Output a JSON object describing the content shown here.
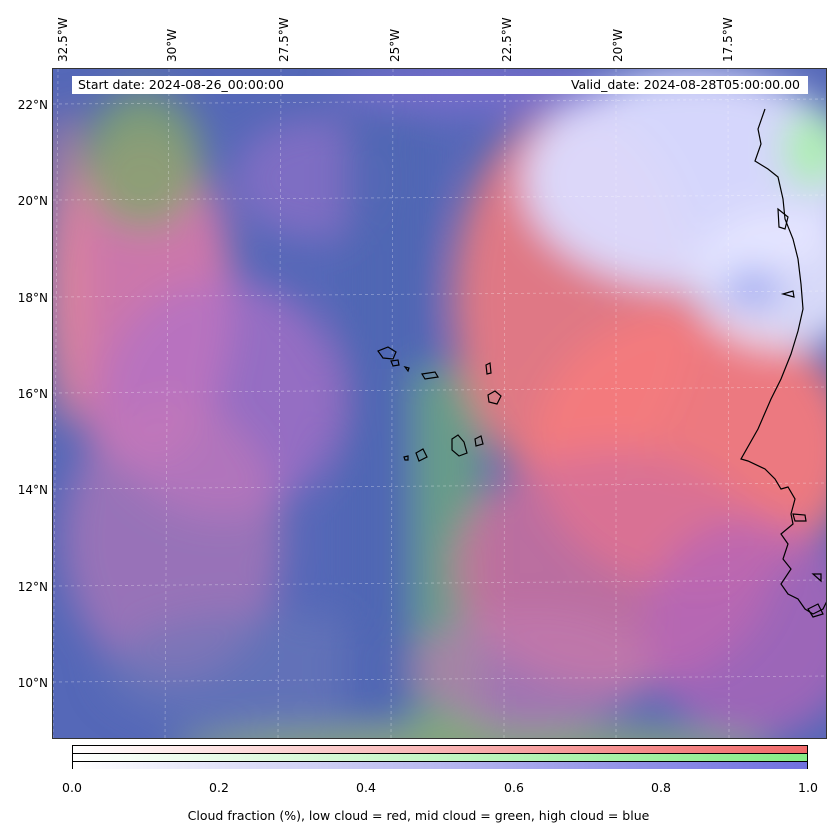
{
  "longitude_labels": [
    "32.5°W",
    "30°W",
    "27.5°W",
    "25°W",
    "22.5°W",
    "20°W",
    "17.5°W"
  ],
  "latitude_labels": [
    "22°N",
    "20°N",
    "18°N",
    "16°N",
    "14°N",
    "12°N",
    "10°N"
  ],
  "header": {
    "start_date": "Start date: 2024-08-26_00:00:00",
    "valid_date": "Valid_date: 2024-08-28T05:00:00.00"
  },
  "colorbar": {
    "ticks": [
      "0.0",
      "0.2",
      "0.4",
      "0.6",
      "0.8",
      "1.0"
    ],
    "label": "Cloud fraction (%), low cloud = red, mid cloud = green, high cloud = blue",
    "colors": {
      "low": "#f06a6a",
      "mid": "#86ec86",
      "high": "#7070e0"
    }
  },
  "colors": {
    "ocean_base": "#5266b6",
    "low_cloud": "#f07878",
    "high_cloud": "#d8d8ff",
    "mid_cloud": "#7fbf6a",
    "purple": "#8a58c8"
  }
}
